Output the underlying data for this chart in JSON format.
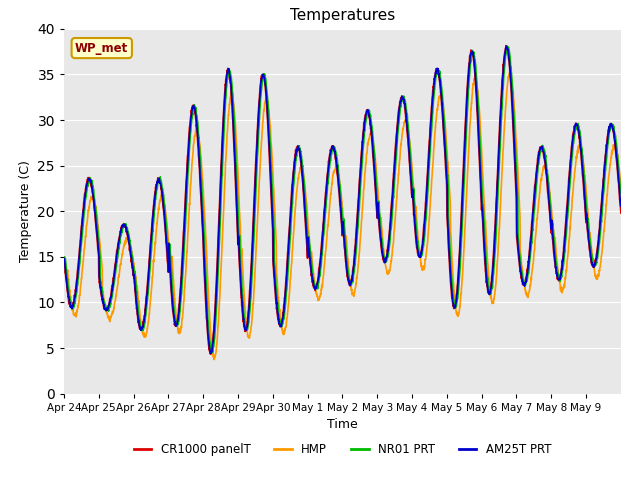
{
  "title": "Temperatures",
  "ylabel": "Temperature (C)",
  "xlabel": "Time",
  "ylim": [
    0,
    40
  ],
  "yticks": [
    0,
    5,
    10,
    15,
    20,
    25,
    30,
    35,
    40
  ],
  "bg_color": "#e8e8e8",
  "fig_color": "#ffffff",
  "station_label": "WP_met",
  "series": {
    "CR1000 panelT": {
      "color": "#dd0000",
      "lw": 1.2
    },
    "HMP": {
      "color": "#ff9900",
      "lw": 1.2
    },
    "NR01 PRT": {
      "color": "#00bb00",
      "lw": 1.2
    },
    "AM25T PRT": {
      "color": "#0000cc",
      "lw": 1.2
    }
  },
  "x_tick_labels": [
    "Apr 24",
    "Apr 25",
    "Apr 26",
    "Apr 27",
    "Apr 28",
    "Apr 29",
    "Apr 30",
    "May 1",
    "May 2",
    "May 3",
    "May 4",
    "May 5",
    "May 6",
    "May 7",
    "May 8",
    "May 9"
  ],
  "daily_mins": [
    9.5,
    9.2,
    7.0,
    7.5,
    4.5,
    7.0,
    7.5,
    11.5,
    12.0,
    14.5,
    15.0,
    9.5,
    11.0,
    12.0,
    12.5,
    14.0
  ],
  "daily_maxs": [
    23.5,
    18.5,
    23.5,
    31.5,
    35.5,
    35.0,
    27.0,
    27.0,
    31.0,
    32.5,
    35.5,
    37.5,
    38.0,
    27.0,
    29.5,
    29.5
  ],
  "n_days": 16,
  "pts_per_day": 144,
  "hmp_lag_hrs": 2.5,
  "nr01_lag_hrs": 1.0
}
